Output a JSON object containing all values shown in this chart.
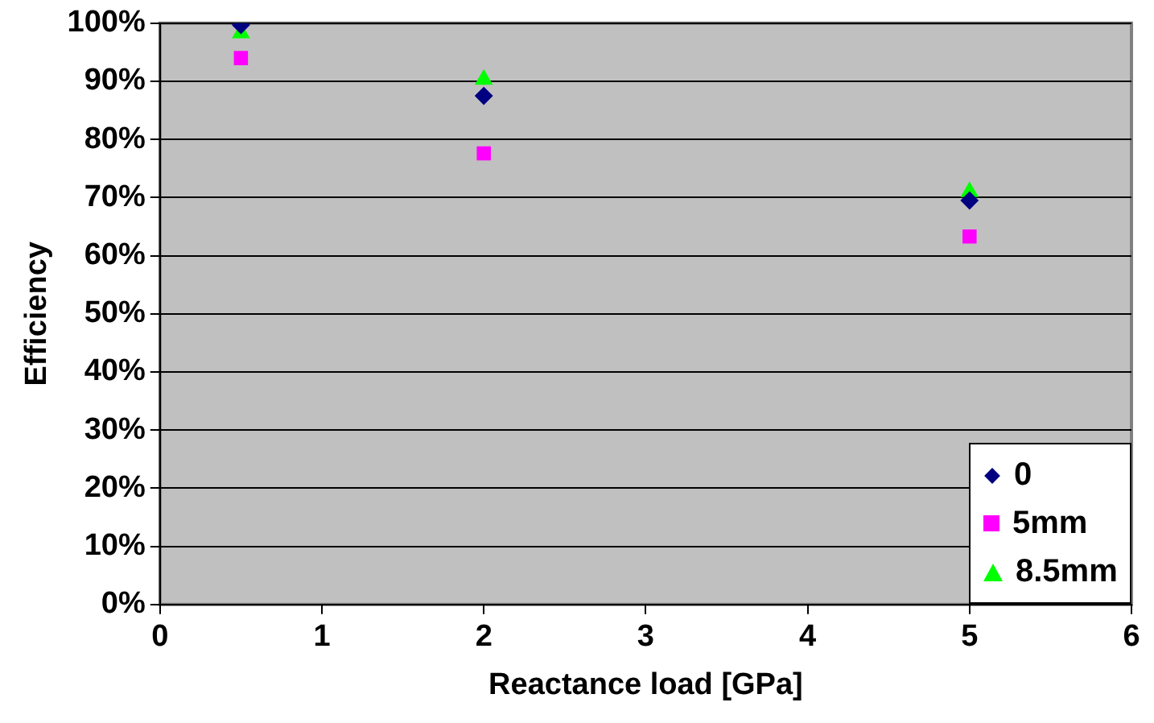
{
  "chart_data": {
    "type": "scatter",
    "xlabel": "Reactance load [GPa]",
    "ylabel": "Efficiency",
    "x": [
      0.5,
      2,
      5
    ],
    "series": [
      {
        "name": "0",
        "color": "#000080",
        "marker": "diamond",
        "values": [
          99.7,
          87.5,
          69.5
        ]
      },
      {
        "name": "5mm",
        "color": "#ff00ff",
        "marker": "square",
        "values": [
          94,
          77.6,
          63.3
        ]
      },
      {
        "name": "8.5mm",
        "color": "#00ff00",
        "marker": "triangle",
        "values": [
          98.3,
          90.3,
          71
        ]
      }
    ],
    "xlim": [
      0,
      6
    ],
    "xticks": [
      0,
      1,
      2,
      3,
      4,
      5,
      6
    ],
    "ylim": [
      0,
      100
    ],
    "yticks": [
      {
        "value": 0,
        "label": "0%"
      },
      {
        "value": 10,
        "label": "10%"
      },
      {
        "value": 20,
        "label": "20%"
      },
      {
        "value": 30,
        "label": "30%"
      },
      {
        "value": 40,
        "label": "40%"
      },
      {
        "value": 50,
        "label": "50%"
      },
      {
        "value": 60,
        "label": "60%"
      },
      {
        "value": 70,
        "label": "70%"
      },
      {
        "value": 80,
        "label": "80%"
      },
      {
        "value": 90,
        "label": "90%"
      },
      {
        "value": 100,
        "label": "100%"
      }
    ],
    "grid": "y",
    "legend": "bottom right"
  }
}
